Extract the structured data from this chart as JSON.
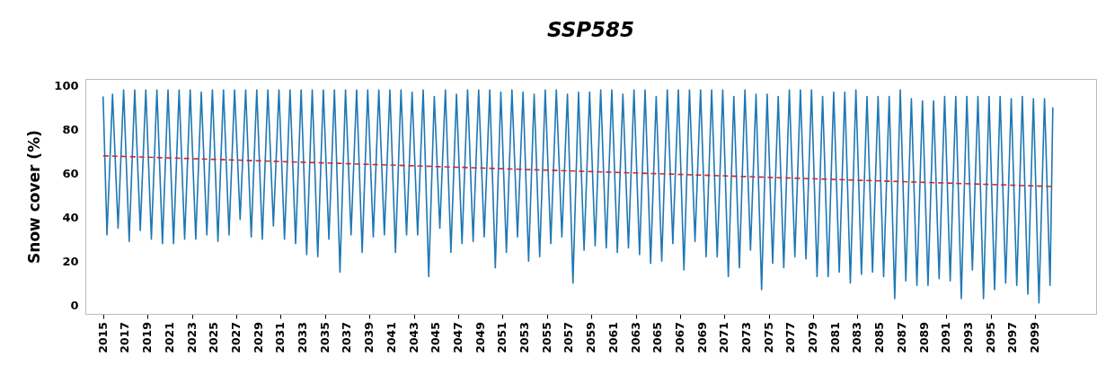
{
  "chart_data": {
    "type": "line",
    "title": "SSP585",
    "ylabel": "Snow cover (%)",
    "xlim": [
      2013.4,
      2104.5
    ],
    "ylim": [
      -4,
      103
    ],
    "xticks": [
      2015,
      2017,
      2019,
      2021,
      2023,
      2025,
      2027,
      2029,
      2031,
      2033,
      2035,
      2037,
      2039,
      2041,
      2043,
      2045,
      2047,
      2049,
      2051,
      2053,
      2055,
      2057,
      2059,
      2061,
      2063,
      2065,
      2067,
      2069,
      2071,
      2073,
      2075,
      2077,
      2079,
      2081,
      2083,
      2085,
      2087,
      2089,
      2091,
      2093,
      2095,
      2097,
      2099
    ],
    "yticks": [
      0,
      20,
      40,
      60,
      80,
      100
    ],
    "grid": false,
    "series": [
      {
        "color": "#1f77b4",
        "x": [
          2015,
          2015.35,
          2015.85,
          2016.35,
          2016.85,
          2017.35,
          2017.85,
          2018.35,
          2018.85,
          2019.35,
          2019.85,
          2020.35,
          2020.85,
          2021.35,
          2021.85,
          2022.35,
          2022.85,
          2023.35,
          2023.85,
          2024.35,
          2024.85,
          2025.35,
          2025.85,
          2026.35,
          2026.85,
          2027.35,
          2027.85,
          2028.35,
          2028.85,
          2029.35,
          2029.85,
          2030.35,
          2030.85,
          2031.35,
          2031.85,
          2032.35,
          2032.85,
          2033.35,
          2033.85,
          2034.35,
          2034.85,
          2035.35,
          2035.85,
          2036.35,
          2036.85,
          2037.35,
          2037.85,
          2038.35,
          2038.85,
          2039.35,
          2039.85,
          2040.35,
          2040.85,
          2041.35,
          2041.85,
          2042.35,
          2042.85,
          2043.35,
          2043.85,
          2044.35,
          2044.85,
          2045.35,
          2045.85,
          2046.35,
          2046.85,
          2047.35,
          2047.85,
          2048.35,
          2048.85,
          2049.35,
          2049.85,
          2050.35,
          2050.85,
          2051.35,
          2051.85,
          2052.35,
          2052.85,
          2053.35,
          2053.85,
          2054.35,
          2054.85,
          2055.35,
          2055.85,
          2056.35,
          2056.85,
          2057.35,
          2057.85,
          2058.35,
          2058.85,
          2059.35,
          2059.85,
          2060.35,
          2060.85,
          2061.35,
          2061.85,
          2062.35,
          2062.85,
          2063.35,
          2063.85,
          2064.35,
          2064.85,
          2065.35,
          2065.85,
          2066.35,
          2066.85,
          2067.35,
          2067.85,
          2068.35,
          2068.85,
          2069.35,
          2069.85,
          2070.35,
          2070.85,
          2071.35,
          2071.85,
          2072.35,
          2072.85,
          2073.35,
          2073.85,
          2074.35,
          2074.85,
          2075.35,
          2075.85,
          2076.35,
          2076.85,
          2077.35,
          2077.85,
          2078.35,
          2078.85,
          2079.35,
          2079.85,
          2080.35,
          2080.85,
          2081.35,
          2081.85,
          2082.35,
          2082.85,
          2083.35,
          2083.85,
          2084.35,
          2084.85,
          2085.35,
          2085.85,
          2086.35,
          2086.85,
          2087.35,
          2087.85,
          2088.35,
          2088.85,
          2089.35,
          2089.85,
          2090.35,
          2090.85,
          2091.35,
          2091.85,
          2092.35,
          2092.85,
          2093.35,
          2093.85,
          2094.35,
          2094.85,
          2095.35,
          2095.85,
          2096.35,
          2096.85,
          2097.35,
          2097.85,
          2098.35,
          2098.85,
          2099.35,
          2099.85,
          2100.35,
          2100.6
        ],
        "values": [
          95,
          32,
          96,
          35,
          98,
          29,
          98,
          34,
          98,
          30,
          98,
          28,
          98,
          28,
          98,
          30,
          98,
          30,
          97,
          32,
          98,
          29,
          98,
          32,
          98,
          39,
          98,
          31,
          98,
          30,
          98,
          36,
          98,
          30,
          98,
          28,
          98,
          23,
          98,
          22,
          98,
          30,
          98,
          15,
          98,
          32,
          98,
          24,
          98,
          31,
          98,
          32,
          98,
          24,
          98,
          32,
          97,
          32,
          98,
          13,
          95,
          35,
          98,
          24,
          96,
          28,
          98,
          29,
          98,
          31,
          98,
          17,
          97,
          24,
          98,
          31,
          97,
          20,
          96,
          22,
          98,
          28,
          98,
          31,
          96,
          10,
          97,
          25,
          97,
          27,
          98,
          26,
          98,
          24,
          96,
          26,
          98,
          23,
          98,
          19,
          95,
          20,
          98,
          28,
          98,
          16,
          98,
          29,
          98,
          22,
          98,
          22,
          98,
          13,
          95,
          17,
          98,
          25,
          96,
          7,
          96,
          19,
          95,
          17,
          98,
          22,
          98,
          21,
          98,
          13,
          95,
          13,
          97,
          15,
          97,
          10,
          98,
          14,
          95,
          15,
          95,
          13,
          95,
          3,
          98,
          11,
          94,
          9,
          93,
          9,
          93,
          12,
          95,
          11,
          95,
          3,
          95,
          16,
          95,
          3,
          95,
          7,
          95,
          10,
          94,
          9,
          95,
          5,
          94,
          1,
          94,
          9,
          90
        ]
      },
      {
        "color": "#d62728",
        "type": "line",
        "line_style": "dashed",
        "x": [
          2015,
          2100.6
        ],
        "values": [
          68,
          54
        ]
      }
    ]
  }
}
